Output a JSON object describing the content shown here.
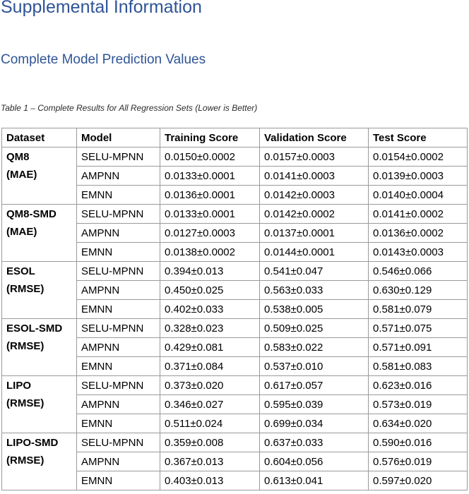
{
  "heading": "Supplemental Information",
  "subheading": "Complete Model Prediction Values",
  "caption": "Table 1 – Complete Results for All Regression Sets (Lower is Better)",
  "table": {
    "headers": [
      "Dataset",
      "Model",
      "Training Score",
      "Validation Score",
      "Test Score"
    ],
    "groups": [
      {
        "dataset": "QM8",
        "metric": "(MAE)",
        "rows": [
          {
            "model": "SELU-MPNN",
            "training": "0.0150±0.0002",
            "validation": "0.0157±0.0003",
            "test": "0.0154±0.0002"
          },
          {
            "model": "AMPNN",
            "training": "0.0133±0.0001",
            "validation": "0.0141±0.0003",
            "test": "0.0139±0.0003"
          },
          {
            "model": "EMNN",
            "training": "0.0136±0.0001",
            "validation": "0.0142±0.0003",
            "test": "0.0140±0.0004"
          }
        ]
      },
      {
        "dataset": "QM8-SMD",
        "metric": "(MAE)",
        "rows": [
          {
            "model": "SELU-MPNN",
            "training": "0.0133±0.0001",
            "validation": "0.0142±0.0002",
            "test": "0.0141±0.0002"
          },
          {
            "model": "AMPNN",
            "training": "0.0127±0.0003",
            "validation": "0.0137±0.0001",
            "test": "0.0136±0.0002"
          },
          {
            "model": "EMNN",
            "training": "0.0138±0.0002",
            "validation": "0.0144±0.0001",
            "test": "0.0143±0.0003"
          }
        ]
      },
      {
        "dataset": "ESOL",
        "metric": "(RMSE)",
        "rows": [
          {
            "model": "SELU-MPNN",
            "training": "0.394±0.013",
            "validation": "0.541±0.047",
            "test": "0.546±0.066"
          },
          {
            "model": "AMPNN",
            "training": "0.450±0.025",
            "validation": "0.563±0.033",
            "test": "0.630±0.129"
          },
          {
            "model": "EMNN",
            "training": "0.402±0.033",
            "validation": "0.538±0.005",
            "test": "0.581±0.079"
          }
        ]
      },
      {
        "dataset": "ESOL-SMD",
        "metric": "(RMSE)",
        "rows": [
          {
            "model": "SELU-MPNN",
            "training": "0.328±0.023",
            "validation": "0.509±0.025",
            "test": "0.571±0.075"
          },
          {
            "model": "AMPNN",
            "training": "0.429±0.081",
            "validation": "0.583±0.022",
            "test": "0.571±0.091"
          },
          {
            "model": "EMNN",
            "training": "0.371±0.084",
            "validation": "0.537±0.010",
            "test": "0.581±0.083"
          }
        ]
      },
      {
        "dataset": "LIPO",
        "metric": "(RMSE)",
        "rows": [
          {
            "model": "SELU-MPNN",
            "training": "0.373±0.020",
            "validation": "0.617±0.057",
            "test": "0.623±0.016"
          },
          {
            "model": "AMPNN",
            "training": "0.346±0.027",
            "validation": "0.595±0.039",
            "test": "0.573±0.019"
          },
          {
            "model": "EMNN",
            "training": "0.511±0.024",
            "validation": "0.699±0.034",
            "test": "0.634±0.020"
          }
        ]
      },
      {
        "dataset": "LIPO-SMD",
        "metric": "(RMSE)",
        "rows": [
          {
            "model": "SELU-MPNN",
            "training": "0.359±0.008",
            "validation": "0.637±0.033",
            "test": "0.590±0.016"
          },
          {
            "model": "AMPNN",
            "training": "0.367±0.013",
            "validation": "0.604±0.056",
            "test": "0.576±0.019"
          },
          {
            "model": "EMNN",
            "training": "0.403±0.013",
            "validation": "0.613±0.041",
            "test": "0.597±0.020"
          }
        ]
      }
    ]
  }
}
